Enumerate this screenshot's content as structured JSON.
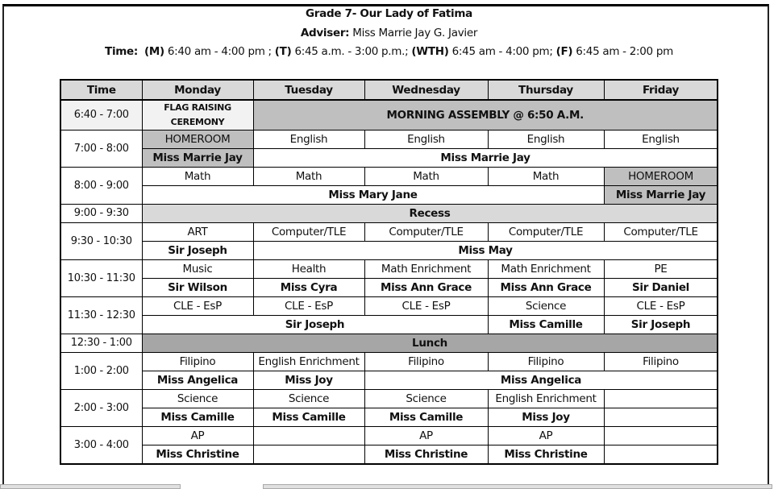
{
  "header": {
    "title": "Grade 7- Our Lady of Fatima",
    "adviser_label": "Adviser:",
    "adviser": " Miss Marrie Jay G. Javier",
    "time_label": "Time:",
    "time_m_label": "(M)",
    "time_m": " 6:40 am - 4:00 pm ; ",
    "time_t_label": "(T)",
    "time_t": " 6:45 a.m. - 3:00 p.m.; ",
    "time_wth_label": "(WTH)",
    "time_wth": " 6:45 am - 4:00 pm; ",
    "time_f_label": "(F)",
    "time_f": " 6:45 am - 2:00 pm"
  },
  "colors": {
    "header_bg": "#d9d9d9",
    "dark_shade": "#bfbfbf",
    "light_shade": "#f2f2f2",
    "lunch_bg": "#a6a6a6"
  },
  "table": {
    "columns": [
      "Time",
      "Monday",
      "Tuesday",
      "Wednesday",
      "Thursday",
      "Friday"
    ],
    "rows": [
      {
        "time": "6:40 - 7:00",
        "time_shade": "light",
        "lines": [
          [
            {
              "text": "FLAG RAISING CEREMONY",
              "cls": "small light",
              "rowspan": 2
            },
            {
              "text": "MORNING ASSEMBLY @ 6:50 A.M.",
              "span": 5,
              "cls": "dark bold",
              "rowspan": 2
            }
          ]
        ],
        "double": true
      },
      {
        "time": "7:00 - 8:00",
        "lines": [
          [
            {
              "text": "HOMEROOM",
              "cls": "dark"
            },
            {
              "text": "English"
            },
            {
              "text": "English"
            },
            {
              "text": "English"
            },
            {
              "text": "English"
            }
          ],
          [
            {
              "text": "Miss Marrie Jay",
              "cls": "dark bold"
            },
            {
              "text": "Miss Marrie Jay",
              "span": 4,
              "cls": "bold"
            }
          ]
        ]
      },
      {
        "time": "8:00 - 9:00",
        "lines": [
          [
            {
              "text": "Math"
            },
            {
              "text": "Math"
            },
            {
              "text": "Math"
            },
            {
              "text": "Math"
            },
            {
              "text": "HOMEROOM",
              "cls": "dark"
            }
          ],
          [
            {
              "text": "Miss Mary Jane",
              "span": 4,
              "cls": "bold"
            },
            {
              "text": "Miss Marrie Jay",
              "cls": "dark bold"
            }
          ]
        ]
      },
      {
        "time": "9:00 - 9:30",
        "lines": [
          [
            {
              "text": "Recess",
              "span": 5,
              "cls": "recess"
            }
          ]
        ]
      },
      {
        "time": "9:30 - 10:30",
        "lines": [
          [
            {
              "text": "ART"
            },
            {
              "text": "Computer/TLE"
            },
            {
              "text": "Computer/TLE"
            },
            {
              "text": "Computer/TLE"
            },
            {
              "text": "Computer/TLE"
            }
          ],
          [
            {
              "text": "Sir Joseph",
              "cls": "bold"
            },
            {
              "text": "Miss May",
              "span": 4,
              "cls": "bold"
            }
          ]
        ]
      },
      {
        "time": "10:30 - 11:30",
        "lines": [
          [
            {
              "text": "Music"
            },
            {
              "text": "Health"
            },
            {
              "text": "Math Enrichment"
            },
            {
              "text": "Math Enrichment"
            },
            {
              "text": "PE"
            }
          ],
          [
            {
              "text": "Sir Wilson",
              "cls": "bold"
            },
            {
              "text": "Miss Cyra",
              "cls": "bold"
            },
            {
              "text": "Miss Ann Grace",
              "cls": "bold"
            },
            {
              "text": "Miss Ann Grace",
              "cls": "bold"
            },
            {
              "text": "Sir Daniel",
              "cls": "bold"
            }
          ]
        ]
      },
      {
        "time": "11:30 - 12:30",
        "lines": [
          [
            {
              "text": "CLE - EsP"
            },
            {
              "text": "CLE - EsP"
            },
            {
              "text": "CLE - EsP"
            },
            {
              "text": "Science"
            },
            {
              "text": "CLE - EsP"
            }
          ],
          [
            {
              "text": "Sir Joseph",
              "span": 3,
              "cls": "bold"
            },
            {
              "text": "Miss Camille",
              "cls": "bold"
            },
            {
              "text": "Sir Joseph",
              "cls": "bold"
            }
          ]
        ]
      },
      {
        "time": "12:30 - 1:00",
        "lines": [
          [
            {
              "text": "Lunch",
              "span": 5,
              "cls": "lunch"
            }
          ]
        ]
      },
      {
        "time": "1:00 - 2:00",
        "lines": [
          [
            {
              "text": "Filipino"
            },
            {
              "text": "English Enrichment"
            },
            {
              "text": "Filipino"
            },
            {
              "text": "Filipino"
            },
            {
              "text": "Filipino"
            }
          ],
          [
            {
              "text": "Miss Angelica",
              "cls": "bold"
            },
            {
              "text": "Miss Joy",
              "cls": "bold"
            },
            {
              "text": "Miss Angelica",
              "span": 3,
              "cls": "bold"
            }
          ]
        ]
      },
      {
        "time": "2:00 - 3:00",
        "lines": [
          [
            {
              "text": "Science"
            },
            {
              "text": "Science"
            },
            {
              "text": "Science"
            },
            {
              "text": "English Enrichment"
            },
            {
              "text": ""
            }
          ],
          [
            {
              "text": "Miss Camille",
              "cls": "bold"
            },
            {
              "text": "Miss Camille",
              "cls": "bold"
            },
            {
              "text": "Miss Camille",
              "cls": "bold"
            },
            {
              "text": "Miss Joy",
              "cls": "bold"
            },
            {
              "text": ""
            }
          ]
        ]
      },
      {
        "time": "3:00 - 4:00",
        "lines": [
          [
            {
              "text": "AP"
            },
            {
              "text": ""
            },
            {
              "text": "AP"
            },
            {
              "text": "AP"
            },
            {
              "text": ""
            }
          ],
          [
            {
              "text": "Miss Christine",
              "cls": "bold"
            },
            {
              "text": ""
            },
            {
              "text": "Miss Christine",
              "cls": "bold"
            },
            {
              "text": "Miss Christine",
              "cls": "bold"
            },
            {
              "text": ""
            }
          ]
        ]
      }
    ]
  }
}
